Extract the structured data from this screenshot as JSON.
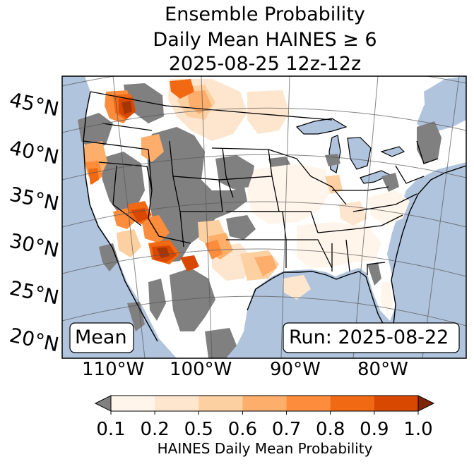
{
  "title": {
    "line1": "Ensemble Probability",
    "line2": "Daily Mean HAINES ≥ 6",
    "line3": "2025-08-25 12z-12z"
  },
  "map": {
    "background_ocean_color": "#b0c4de",
    "land_color": "#ffffff",
    "no_data_color": "#808080",
    "lat_labels": [
      "45°N",
      "40°N",
      "35°N",
      "30°N",
      "25°N",
      "20°N"
    ],
    "lon_labels": [
      "110°W",
      "100°W",
      "90°W",
      "80°W"
    ],
    "left_box": "Mean",
    "right_box": "Run: 2025-08-22"
  },
  "colorbar": {
    "title": "HAINES Daily Mean Probability",
    "ticks": [
      "0.1",
      "0.2",
      "0.5",
      "0.6",
      "0.7",
      "0.8",
      "0.9",
      "1.0"
    ],
    "colors": [
      "#fff5eb",
      "#fee6ce",
      "#fdd0a2",
      "#fdae6b",
      "#fd8d3c",
      "#f16913",
      "#d94801",
      "#a63603"
    ],
    "under_color": "#808080"
  }
}
